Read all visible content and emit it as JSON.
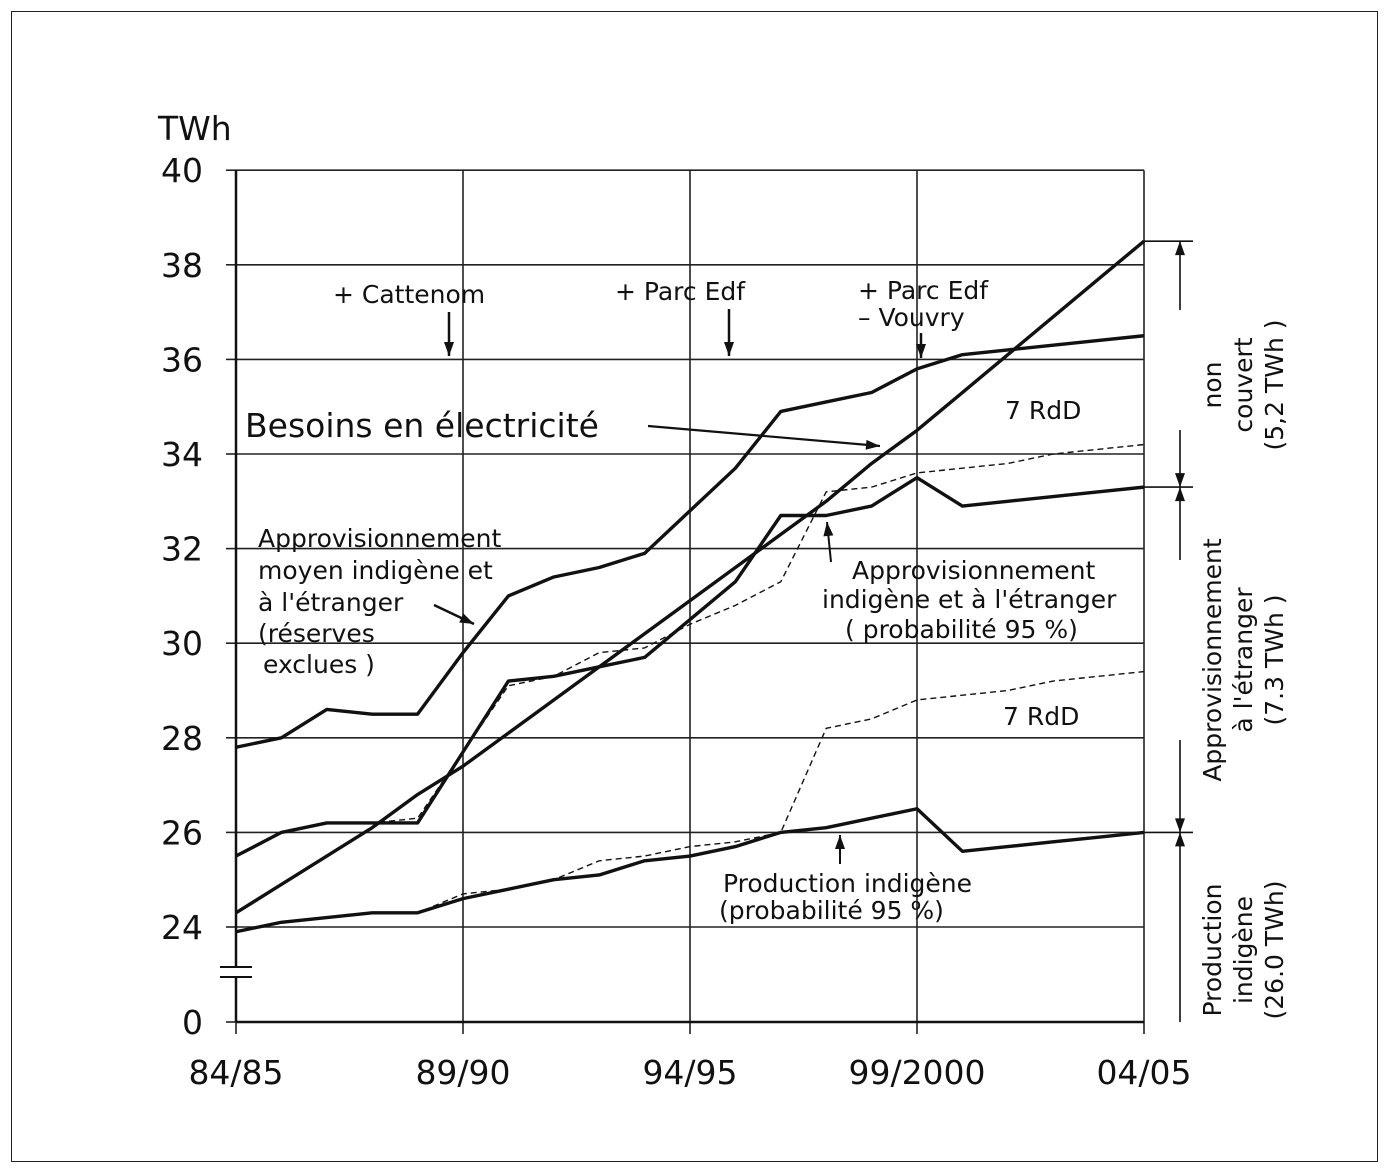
{
  "chart_data": {
    "type": "line",
    "ylabel": "TWh",
    "x_tick_labels": [
      "84/85",
      "89/90",
      "94/95",
      "99/2000",
      "04/05"
    ],
    "y_tick_labels": [
      "0",
      "24",
      "26",
      "28",
      "30",
      "32",
      "34",
      "36",
      "38",
      "40"
    ],
    "y_break": "0 – 23",
    "xlim": [
      0,
      20
    ],
    "ylim": [
      23,
      40
    ],
    "grid": true,
    "x": [
      0,
      1,
      2,
      3,
      4,
      5,
      6,
      7,
      8,
      9,
      10,
      11,
      12,
      13,
      14,
      15,
      16,
      17,
      18,
      19,
      20
    ],
    "series": [
      {
        "name": "Besoins en électricité",
        "style": "thick",
        "values": [
          24.3,
          24.9,
          25.5,
          26.1,
          26.8,
          27.4,
          28.1,
          28.8,
          29.5,
          30.2,
          30.9,
          31.6,
          32.3,
          33.0,
          33.8,
          34.5,
          35.3,
          36.1,
          36.9,
          37.7,
          38.5
        ]
      },
      {
        "name": "Approvisionnement moyen indigène et à l'étranger (réserves exclues)",
        "style": "thick",
        "values": [
          27.8,
          28.0,
          28.6,
          28.5,
          28.5,
          29.8,
          31.0,
          31.4,
          31.6,
          31.9,
          32.8,
          33.7,
          34.9,
          35.1,
          35.3,
          35.8,
          36.1,
          36.2,
          36.3,
          36.4,
          36.5
        ]
      },
      {
        "name": "Approvisionnement indigène et à l'étranger (probabilité 95 %)",
        "style": "thick",
        "values": [
          25.5,
          26.0,
          26.2,
          26.2,
          26.2,
          27.7,
          29.2,
          29.3,
          29.5,
          29.7,
          30.5,
          31.3,
          32.7,
          32.7,
          32.9,
          33.5,
          32.9,
          33.0,
          33.1,
          33.2,
          33.3
        ]
      },
      {
        "name": "Approvisionnement indigène et à l'étranger (probabilité 95 %) + 7 RdD",
        "style": "dashed",
        "values": [
          25.5,
          26.0,
          26.2,
          26.2,
          26.3,
          27.7,
          29.1,
          29.3,
          29.8,
          29.9,
          30.4,
          30.8,
          31.3,
          33.2,
          33.3,
          33.6,
          33.7,
          33.8,
          34.0,
          34.1,
          34.2
        ]
      },
      {
        "name": "Production indigène (probabilité 95 %)",
        "style": "thick",
        "values": [
          23.9,
          24.1,
          24.2,
          24.3,
          24.3,
          24.6,
          24.8,
          25.0,
          25.1,
          25.4,
          25.5,
          25.7,
          26.0,
          26.1,
          26.3,
          26.5,
          25.6,
          25.7,
          25.8,
          25.9,
          26.0
        ]
      },
      {
        "name": "Production indigène (probabilité 95 %) + 7 RdD",
        "style": "dashed",
        "values": [
          23.9,
          24.1,
          24.2,
          24.3,
          24.3,
          24.7,
          24.8,
          25.0,
          25.4,
          25.5,
          25.7,
          25.8,
          26.0,
          28.2,
          28.4,
          28.8,
          28.9,
          29.0,
          29.2,
          29.3,
          29.4
        ]
      }
    ],
    "labels": {
      "besoins": "Besoins en électricité",
      "appro_moyen": [
        "Approvisionnement",
        "moyen indigène et",
        "à l'étranger",
        "(réserves",
        "exclues )"
      ],
      "appro_95": [
        "Approvisionnement",
        "indigène et à l'étranger",
        "( probabilité 95 %)"
      ],
      "prod": [
        "Production indigène",
        "(probabilité 95 %)"
      ],
      "rdd_top": "7 RdD",
      "rdd_bottom": "7 RdD",
      "events": [
        {
          "lines": [
            "+ Cattenom"
          ],
          "x": 5
        },
        {
          "lines": [
            "+ Parc Edf"
          ],
          "x": 11
        },
        {
          "lines": [
            "+ Parc Edf",
            "– Vouvry"
          ],
          "x": 15
        }
      ]
    },
    "brackets": [
      {
        "lines": [
          "non",
          "couvert",
          "(5,2 TWh )"
        ],
        "from": 33.3,
        "to": 38.5
      },
      {
        "lines": [
          "Approvisionnement",
          "à l'étranger",
          "(7.3 TWh )"
        ],
        "from": 26.0,
        "to": 33.3
      },
      {
        "lines": [
          "Production",
          "indigène",
          "(26.0 TWh)"
        ],
        "from": 0,
        "to": 26.0
      }
    ]
  }
}
